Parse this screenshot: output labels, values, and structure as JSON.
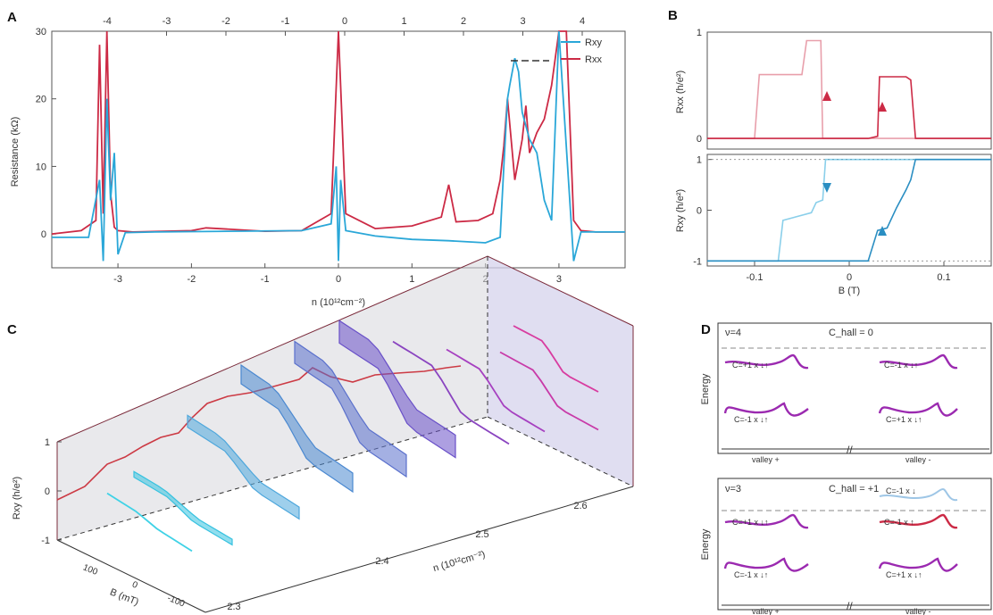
{
  "colors": {
    "rxy": "#2aa7d8",
    "rxx": "#cc2a45",
    "band": "#9b2ab0",
    "band_light": "#9ec6e6",
    "dash": "#888888"
  },
  "panels": {
    "A": {
      "label": "A",
      "legend": [
        "Rxy",
        "Rxx"
      ],
      "ylabel": "Resistance (kΩ)",
      "xlabel": "n (10¹²cm⁻²)",
      "yticks": [
        "0",
        "10",
        "20",
        "30"
      ],
      "xticks": [
        "-3",
        "-2",
        "-1",
        "0",
        "1",
        "2",
        "3"
      ],
      "top_ticks": [
        "-4",
        "-3",
        "-2",
        "-1",
        "0",
        "1",
        "2",
        "3",
        "4"
      ]
    },
    "B": {
      "label": "B",
      "ylabel_top": "Rxx (h/e²)",
      "ylabel_bottom": "Rxy (h/e²)",
      "xlabel": "B (T)",
      "yticks_top": [
        "0",
        "1"
      ],
      "yticks_bottom": [
        "-1",
        "0",
        "1"
      ],
      "xticks": [
        "-0.1",
        "0",
        "0.1"
      ]
    },
    "C": {
      "label": "C",
      "zlabel": "Rxy (h/e²)",
      "zticks": [
        "1",
        "0",
        "-1"
      ],
      "blabel": "B (mT)",
      "bticks": [
        "100",
        "0",
        "-100"
      ],
      "nlabel": "n (10¹²cm⁻²)",
      "nticks": [
        "2.3",
        "2.4",
        "2.5",
        "2.6"
      ]
    },
    "D": {
      "label": "D",
      "top": {
        "nu": "ν=4",
        "chall": "C_hall = 0",
        "bands": [
          "C=+1 x ↓↑",
          "C=-1 x ↓↑",
          "C=-1 x ↓↑",
          "C=+1 x ↓↑"
        ],
        "valleys": [
          "valley +",
          "valley -"
        ],
        "ylabel": "Energy"
      },
      "bottom": {
        "nu": "ν=3",
        "chall": "C_hall = +1",
        "bands": [
          "C=-1 x ↓",
          "C=+1 x ↓↑",
          "C=-1 x ↑",
          "C=-1 x ↓↑",
          "C=+1 x ↓↑"
        ],
        "valleys": [
          "valley +",
          "valley -"
        ],
        "ylabel": "Energy"
      }
    }
  },
  "chart_data": [
    {
      "type": "line",
      "panel": "A",
      "xlabel": "n (10¹²cm⁻²)",
      "ylabel": "Resistance (kΩ)",
      "xlim": [
        -3.9,
        3.9
      ],
      "ylim": [
        -5,
        30
      ],
      "series": [
        {
          "name": "Rxy",
          "x": [
            -3.9,
            -3.4,
            -3.25,
            -3.2,
            -3.15,
            -3.1,
            -3.05,
            -3.0,
            -2.9,
            -2.5,
            -1.5,
            -0.5,
            -0.1,
            -0.03,
            0.0,
            0.03,
            0.1,
            0.5,
            1.0,
            1.5,
            2.0,
            2.2,
            2.25,
            2.3,
            2.33,
            2.4,
            2.45,
            2.5,
            2.6,
            2.7,
            2.8,
            2.9,
            3.0,
            3.2,
            3.3,
            3.5,
            3.9
          ],
          "values": [
            -0.5,
            -0.5,
            8,
            -4,
            20,
            5,
            12,
            -3,
            0.2,
            0.3,
            0.4,
            0.5,
            1.5,
            10,
            -4,
            8,
            0.5,
            -0.3,
            -0.8,
            -1.0,
            -1.3,
            -0.5,
            10,
            20,
            22,
            26,
            24,
            18,
            14,
            12,
            5,
            2,
            30,
            -4,
            0.3,
            0.3,
            0.3
          ]
        },
        {
          "name": "Rxx",
          "x": [
            -3.9,
            -3.5,
            -3.3,
            -3.25,
            -3.2,
            -3.15,
            -3.1,
            -3.05,
            -3.0,
            -2.8,
            -2.0,
            -1.8,
            -1.0,
            -0.5,
            -0.1,
            0.0,
            0.1,
            0.5,
            1.0,
            1.4,
            1.5,
            1.6,
            1.9,
            2.1,
            2.2,
            2.25,
            2.3,
            2.4,
            2.5,
            2.55,
            2.6,
            2.7,
            2.8,
            2.9,
            3.0,
            3.1,
            3.2,
            3.3,
            3.5,
            3.9
          ],
          "values": [
            0.0,
            0.5,
            2,
            28,
            3,
            30,
            6,
            1,
            0.5,
            0.3,
            0.5,
            0.9,
            0.4,
            0.5,
            3,
            30,
            3,
            0.8,
            1.2,
            2.5,
            7.3,
            1.8,
            2,
            3,
            8,
            13,
            20,
            8,
            14,
            19,
            12,
            15,
            17,
            22,
            30,
            30,
            2,
            0.5,
            0.3,
            0.3
          ]
        }
      ]
    },
    {
      "type": "line",
      "panel": "B-top",
      "xlabel": "B (T)",
      "ylabel": "Rxx (h/e²)",
      "xlim": [
        -0.15,
        0.15
      ],
      "ylim": [
        -0.1,
        1.0
      ],
      "series": [
        {
          "name": "Rxx sweep up",
          "x": [
            -0.15,
            -0.1,
            -0.095,
            -0.05,
            -0.045,
            -0.03,
            -0.028,
            0.0,
            0.15
          ],
          "values": [
            0.0,
            0.0,
            0.6,
            0.6,
            0.92,
            0.92,
            0.0,
            0.0,
            0.0
          ]
        },
        {
          "name": "Rxx sweep down",
          "x": [
            -0.15,
            0.02,
            0.03,
            0.032,
            0.06,
            0.065,
            0.07,
            0.15
          ],
          "values": [
            0.0,
            0.0,
            0.02,
            0.58,
            0.58,
            0.55,
            0.0,
            0.0
          ]
        }
      ]
    },
    {
      "type": "line",
      "panel": "B-bottom",
      "xlabel": "B (T)",
      "ylabel": "Rxy (h/e²)",
      "xlim": [
        -0.15,
        0.15
      ],
      "ylim": [
        -1.1,
        1.1
      ],
      "series": [
        {
          "name": "Rxy sweep up",
          "x": [
            -0.15,
            -0.075,
            -0.07,
            -0.04,
            -0.035,
            -0.028,
            -0.025,
            0.15
          ],
          "values": [
            -1.0,
            -1.0,
            -0.2,
            -0.05,
            0.15,
            0.2,
            1.0,
            1.0
          ]
        },
        {
          "name": "Rxy sweep down",
          "x": [
            -0.15,
            0.02,
            0.03,
            0.04,
            0.05,
            0.06,
            0.065,
            0.07,
            0.15
          ],
          "values": [
            -1.0,
            -1.0,
            -0.4,
            -0.35,
            0.05,
            0.4,
            0.6,
            1.0,
            1.0
          ]
        }
      ]
    }
  ]
}
